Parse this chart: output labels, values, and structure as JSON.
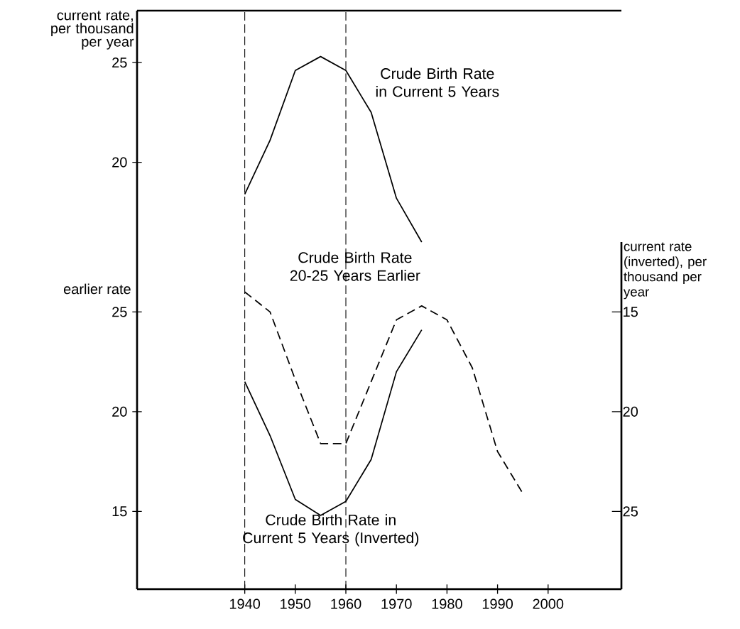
{
  "chart_data": [
    {
      "type": "line",
      "ylabel": "current rate, per thousand per year",
      "xlim": [
        1918.7,
        2014.5
      ],
      "ylim": [
        16,
        27.6
      ],
      "yticks": [
        20,
        25
      ],
      "tick_labels": "y",
      "ref_lines": [
        {
          "axis": "x",
          "value": 1940,
          "line_style": "dashed"
        },
        {
          "axis": "x",
          "value": 1960,
          "line_style": "dashed"
        }
      ],
      "series": [
        {
          "name": "Crude Birth Rate in Current 5 Years",
          "color": "#000000",
          "line_style": "solid",
          "x": [
            1940,
            1945,
            1950,
            1955,
            1960,
            1965,
            1970,
            1975
          ],
          "values": [
            18.4,
            21.1,
            24.6,
            25.3,
            24.6,
            22.5,
            18.2,
            16.0
          ]
        }
      ]
    },
    {
      "type": "line",
      "ylabel": "earlier rate",
      "y2label": "current rate (inverted), per thousand per year",
      "xlim": [
        1918.7,
        2014.5
      ],
      "ylim": [
        11.1,
        28.5
      ],
      "yticks": [
        15,
        20,
        25
      ],
      "y2lim": [
        28.9,
        11.5
      ],
      "y2ticks": [
        15,
        20,
        25
      ],
      "xticks": [
        1940,
        1950,
        1960,
        1970,
        1980,
        1990,
        2000
      ],
      "ref_lines": [
        {
          "axis": "x",
          "value": 1940,
          "line_style": "dashed"
        },
        {
          "axis": "x",
          "value": 1960,
          "line_style": "dashed"
        }
      ],
      "series": [
        {
          "name": "Crude Birth Rate 20-25 Years Earlier",
          "color": "#000000",
          "line_style": "dashed",
          "x": [
            1940,
            1945,
            1950,
            1955,
            1960,
            1965,
            1970,
            1975,
            1980,
            1985,
            1990,
            1995
          ],
          "values": [
            26.0,
            25.0,
            21.6,
            18.4,
            18.4,
            21.5,
            24.6,
            25.3,
            24.6,
            22.2,
            18.0,
            15.9
          ]
        },
        {
          "name": "Crude Birth Rate in Current 5 Years (Inverted)",
          "color": "#000000",
          "line_style": "solid",
          "axis": "y2",
          "x": [
            1940,
            1945,
            1950,
            1955,
            1960,
            1965,
            1970,
            1975
          ],
          "values": [
            18.5,
            21.2,
            24.4,
            25.2,
            24.5,
            22.4,
            18.0,
            15.9
          ]
        }
      ]
    }
  ]
}
